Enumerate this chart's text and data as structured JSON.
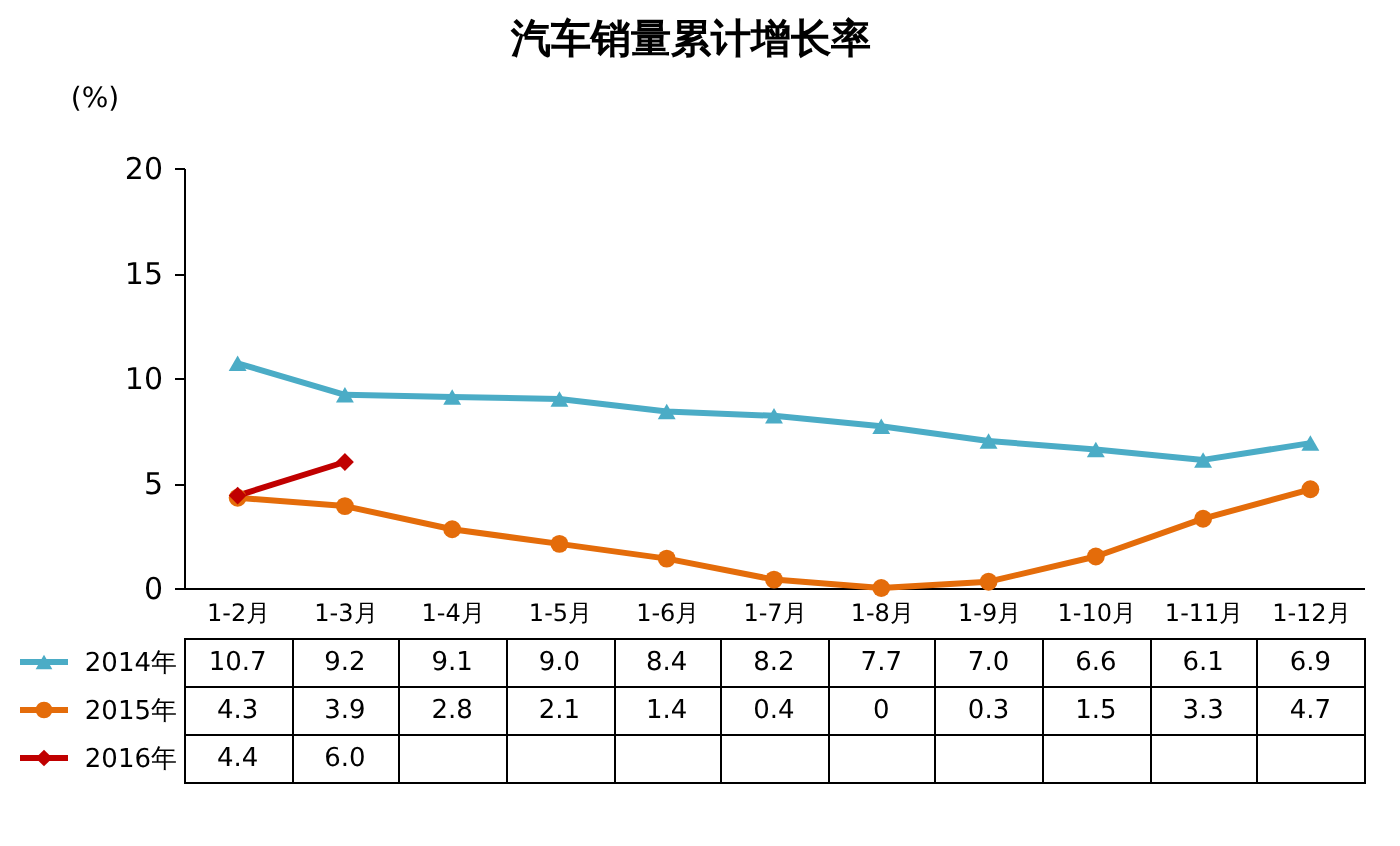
{
  "chart_data": {
    "type": "line",
    "title": "汽车销量累计增长率",
    "ylabel": "(%)",
    "categories": [
      "1-2月",
      "1-3月",
      "1-4月",
      "1-5月",
      "1-6月",
      "1-7月",
      "1-8月",
      "1-9月",
      "1-10月",
      "1-11月",
      "1-12月"
    ],
    "series": [
      {
        "name": "2014年",
        "color": "#4bacc6",
        "marker": "triangle",
        "values": [
          10.7,
          9.2,
          9.1,
          9.0,
          8.4,
          8.2,
          7.7,
          7.0,
          6.6,
          6.1,
          6.9
        ],
        "value_labels": [
          "10.7",
          "9.2",
          "9.1",
          "9.0",
          "8.4",
          "8.2",
          "7.7",
          "7.0",
          "6.6",
          "6.1",
          "6.9"
        ]
      },
      {
        "name": "2015年",
        "color": "#e46c0a",
        "marker": "circle",
        "values": [
          4.3,
          3.9,
          2.8,
          2.1,
          1.4,
          0.4,
          0,
          0.3,
          1.5,
          3.3,
          4.7
        ],
        "value_labels": [
          "4.3",
          "3.9",
          "2.8",
          "2.1",
          "1.4",
          "0.4",
          "0",
          "0.3",
          "1.5",
          "3.3",
          "4.7"
        ]
      },
      {
        "name": "2016年",
        "color": "#c00000",
        "marker": "diamond",
        "values": [
          4.4,
          6.0,
          null,
          null,
          null,
          null,
          null,
          null,
          null,
          null,
          null
        ],
        "value_labels": [
          "4.4",
          "6.0",
          null,
          null,
          null,
          null,
          null,
          null,
          null,
          null,
          null
        ]
      }
    ],
    "ylim": [
      0,
      20
    ],
    "yticks": [
      0,
      5,
      10,
      15,
      20
    ],
    "grid": false,
    "legend": "bottom",
    "line_style": "solid"
  }
}
